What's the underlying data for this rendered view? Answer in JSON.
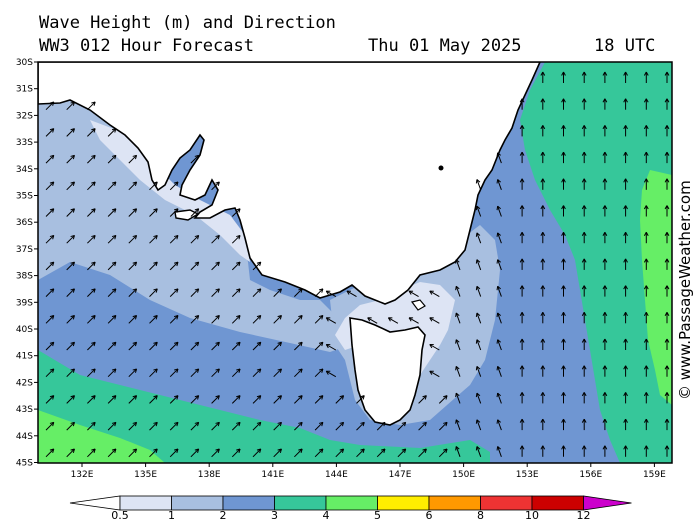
{
  "header": {
    "title": "Wave Height (m) and Direction",
    "model": "WW3 012 Hour Forecast",
    "date": "Thu 01 May 2025",
    "time": "18 UTC"
  },
  "axes": {
    "lat_labels": [
      "30S",
      "31S",
      "32S",
      "33S",
      "34S",
      "35S",
      "36S",
      "37S",
      "38S",
      "39S",
      "40S",
      "41S",
      "42S",
      "43S",
      "44S",
      "45S"
    ],
    "lon_labels": [
      "132E",
      "135E",
      "138E",
      "141E",
      "144E",
      "147E",
      "150E",
      "153E",
      "156E",
      "159E"
    ]
  },
  "legend": {
    "labels": [
      "0.5",
      "1",
      "2",
      "3",
      "4",
      "5",
      "6",
      "8",
      "10",
      "12"
    ],
    "colors": [
      "#ffffff",
      "#dde4f4",
      "#a8bfe0",
      "#6f96d2",
      "#36c79a",
      "#66ee66",
      "#ffee00",
      "#ff9900",
      "#ee3333",
      "#cc0000",
      "#cc00cc"
    ]
  },
  "colors": {
    "band_0_5_1": "#dde4f4",
    "band_1_2": "#a8bfe0",
    "band_2_3": "#6f96d2",
    "band_3_4": "#36c79a",
    "band_4_5": "#66ee66"
  },
  "credit": "© www.PassageWeather.com"
}
